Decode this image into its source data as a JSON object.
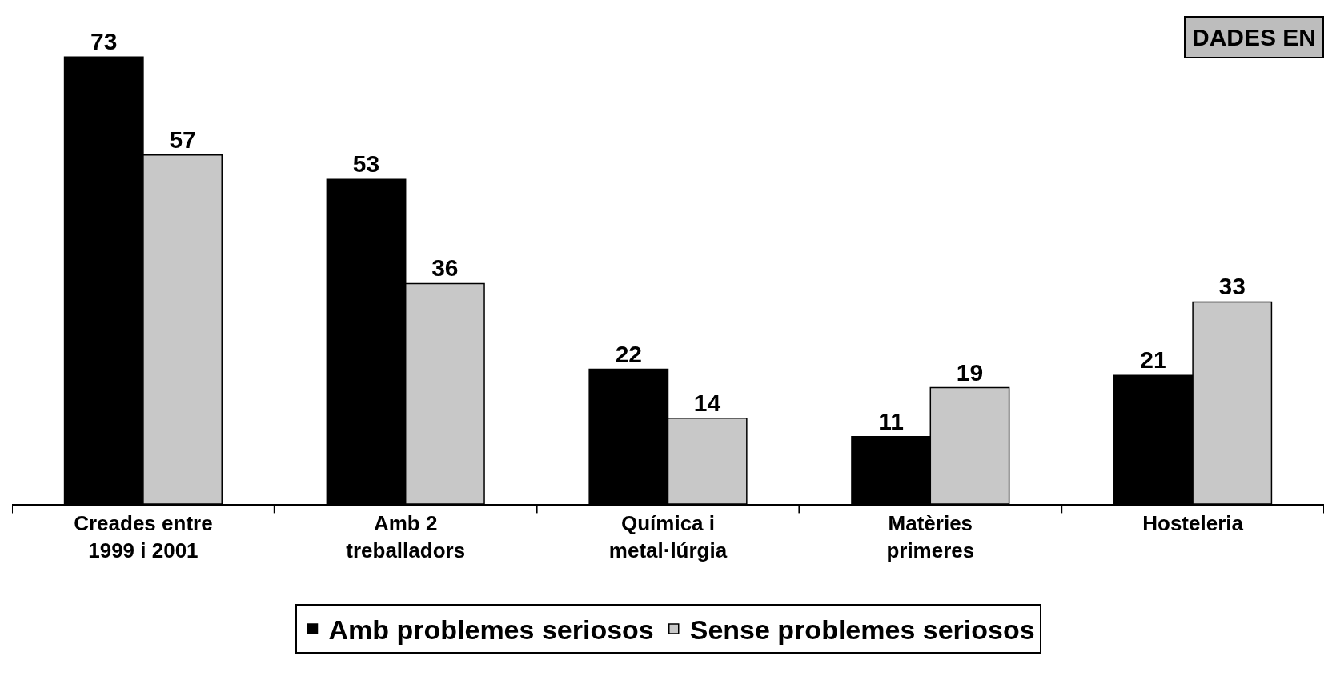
{
  "chart_data": {
    "type": "bar",
    "categories": [
      "Creades entre\n1999 i 2001",
      "Amb 2\ntreballadors",
      "Química i\nmetal·lúrgia",
      "Matèries\nprimeres",
      "Hosteleria"
    ],
    "series": [
      {
        "name": "Amb problemes seriosos",
        "color": "#000000",
        "values": [
          73,
          53,
          22,
          11,
          21
        ]
      },
      {
        "name": "Sense problemes seriosos",
        "color": "#c8c8c8",
        "values": [
          57,
          36,
          14,
          19,
          33
        ]
      }
    ],
    "data_labels": true,
    "legend": "bottom",
    "annotations": [
      "DADES EN"
    ]
  }
}
